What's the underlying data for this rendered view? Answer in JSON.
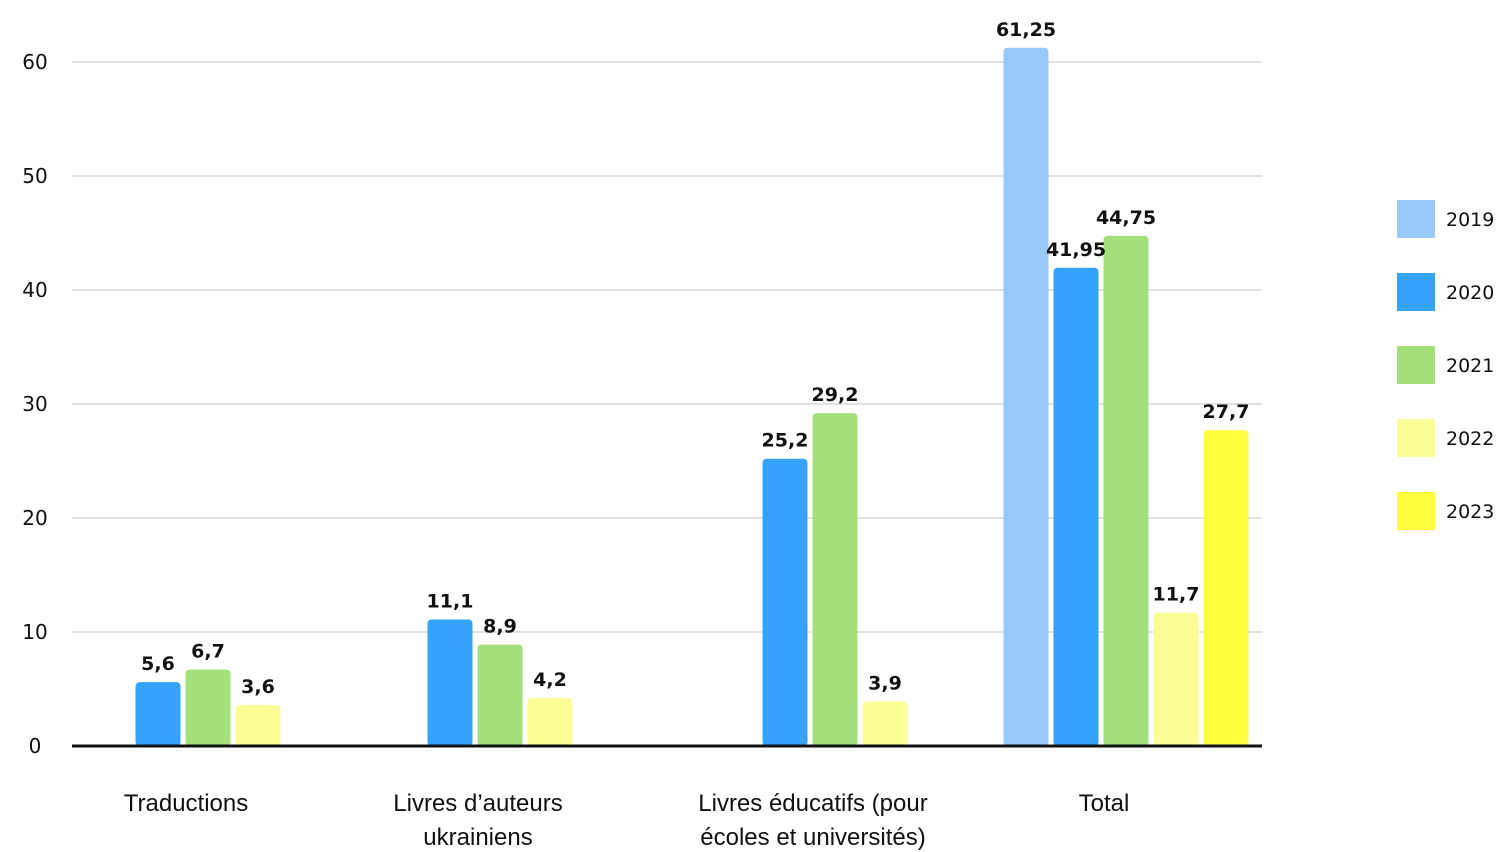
{
  "chart_data": {
    "type": "bar",
    "categories": [
      [
        "Traductions"
      ],
      [
        "Livres d’auteurs",
        "ukrainiens"
      ],
      [
        "Livres éducatifs (pour",
        "écoles et universités)"
      ],
      [
        "Total"
      ]
    ],
    "series": [
      {
        "name": "2019",
        "color": "#99c8fd",
        "values": [
          null,
          null,
          null,
          61.25
        ],
        "labels": [
          null,
          null,
          null,
          "61,25"
        ]
      },
      {
        "name": "2020",
        "color": "#36a2fb",
        "values": [
          5.6,
          11.1,
          25.2,
          41.95
        ],
        "labels": [
          "5,6",
          "11,1",
          "25,2",
          "41,95"
        ]
      },
      {
        "name": "2021",
        "color": "#a3e07c",
        "values": [
          6.7,
          8.9,
          29.2,
          44.75
        ],
        "labels": [
          "6,7",
          "8,9",
          "29,2",
          "44,75"
        ]
      },
      {
        "name": "2022",
        "color": "#fdfd97",
        "values": [
          3.6,
          4.2,
          3.9,
          11.7
        ],
        "labels": [
          "3,6",
          "4,2",
          "3,9",
          "11,7"
        ]
      },
      {
        "name": "2023",
        "color": "#fefe3e",
        "values": [
          null,
          null,
          null,
          27.7
        ],
        "labels": [
          null,
          null,
          null,
          "27,7"
        ]
      }
    ],
    "y_ticks": [
      "0",
      "10",
      "20",
      "30",
      "40",
      "50",
      "60"
    ],
    "ylim": [
      0,
      60
    ],
    "grid": true,
    "legend_position": "right"
  }
}
